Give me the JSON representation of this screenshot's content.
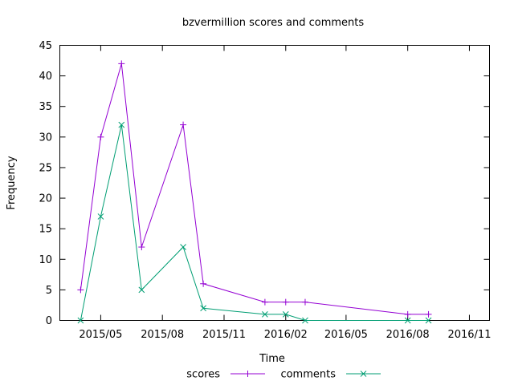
{
  "chart_data": {
    "type": "line",
    "title": "bzvermillion scores and comments",
    "xlabel": "Time",
    "ylabel": "Frequency",
    "ylim": [
      0,
      45
    ],
    "yticks": [
      0,
      5,
      10,
      15,
      20,
      25,
      30,
      35,
      40,
      45
    ],
    "xlim": [
      "2015-03-01",
      "2016-12-01"
    ],
    "xticks": [
      {
        "date": "2015-05-01",
        "label": "2015/05"
      },
      {
        "date": "2015-08-01",
        "label": "2015/08"
      },
      {
        "date": "2015-11-01",
        "label": "2015/11"
      },
      {
        "date": "2016-02-01",
        "label": "2016/02"
      },
      {
        "date": "2016-05-01",
        "label": "2016/05"
      },
      {
        "date": "2016-08-01",
        "label": "2016/08"
      },
      {
        "date": "2016-11-01",
        "label": "2016/11"
      }
    ],
    "x": [
      "2015-04-01",
      "2015-05-01",
      "2015-06-01",
      "2015-07-01",
      "2015-09-01",
      "2015-10-01",
      "2016-01-01",
      "2016-02-01",
      "2016-03-01",
      "2016-08-01",
      "2016-09-01"
    ],
    "series": [
      {
        "name": "scores",
        "color": "#9400d3",
        "marker": "plus",
        "values": [
          5,
          30,
          42,
          12,
          32,
          6,
          3,
          3,
          3,
          1,
          1
        ]
      },
      {
        "name": "comments",
        "color": "#009e73",
        "marker": "cross",
        "values": [
          0,
          17,
          32,
          5,
          12,
          2,
          1,
          1,
          0,
          0,
          0
        ]
      }
    ],
    "grid": false,
    "legend_position": "bottom-center"
  }
}
